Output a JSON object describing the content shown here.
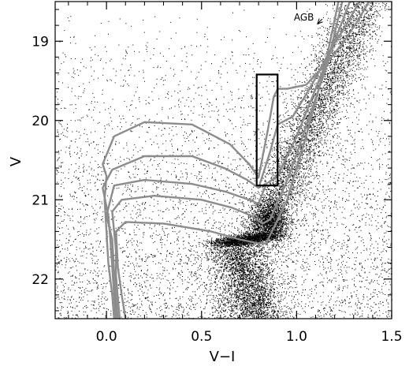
{
  "chart_data": {
    "type": "scatter",
    "title": "",
    "xlabel": "V−I",
    "ylabel": "V",
    "xlim": [
      -0.27,
      1.5
    ],
    "ylim": [
      22.5,
      18.5
    ],
    "y_inverted": true,
    "x_ticks": [
      0.0,
      0.5,
      1.0,
      1.5
    ],
    "x_tick_labels": [
      "0.0",
      "0.5",
      "1.0",
      "1.5"
    ],
    "y_ticks": [
      19,
      20,
      21,
      22
    ],
    "y_tick_labels": [
      "19",
      "20",
      "21",
      "22"
    ],
    "grid": false,
    "point_color": "#000000",
    "isochrone_color": "#8c8c8c",
    "box_color": "#000000",
    "annotations": [
      {
        "text": "AGB",
        "x": 1.06,
        "y": 18.7,
        "arrow_to": [
          1.11,
          18.78
        ]
      }
    ],
    "selection_box": {
      "x": [
        0.79,
        0.9
      ],
      "y": [
        19.42,
        20.82
      ]
    },
    "point_cloud": {
      "description_components": [
        {
          "name": "red clump",
          "center": [
            0.86,
            21.27
          ],
          "spread": [
            0.05,
            0.13
          ],
          "weight": 0.1
        },
        {
          "name": "red giant branch",
          "from": [
            0.8,
            21.55
          ],
          "to": [
            1.35,
            18.5
          ],
          "width": 0.07,
          "weight": 0.3
        },
        {
          "name": "main sequence turnoff",
          "from": [
            0.78,
            22.5
          ],
          "to": [
            0.68,
            21.55
          ],
          "width": 0.08,
          "weight": 0.18
        },
        {
          "name": "subgiant",
          "from": [
            0.6,
            21.55
          ],
          "to": [
            0.85,
            21.45
          ],
          "width": 0.05,
          "weight": 0.1
        },
        {
          "name": "field",
          "xrange": [
            -0.27,
            1.5
          ],
          "yrange": [
            18.5,
            22.5
          ],
          "weight": 0.32
        }
      ]
    },
    "series": [
      {
        "x": [
          0.04,
          0.03,
          0.01,
          0.0,
          -0.01,
          0.0,
          -0.02,
          0.04,
          0.2,
          0.45,
          0.65,
          0.75,
          0.8,
          0.85,
          0.88,
          0.9,
          0.95,
          1.05,
          1.15,
          1.25,
          1.32,
          1.38
        ],
        "y": [
          22.5,
          22.2,
          21.8,
          21.4,
          21.0,
          20.7,
          20.55,
          20.2,
          20.02,
          20.05,
          20.3,
          20.55,
          20.72,
          20.1,
          19.7,
          19.6,
          19.6,
          19.55,
          19.3,
          19.0,
          18.75,
          18.5
        ]
      },
      {
        "x": [
          0.05,
          0.04,
          0.03,
          0.02,
          0.01,
          -0.02,
          0.03,
          0.2,
          0.45,
          0.62,
          0.74,
          0.8,
          0.86,
          0.9,
          0.98,
          1.08,
          1.18,
          1.26,
          1.33
        ],
        "y": [
          22.5,
          22.2,
          21.85,
          21.5,
          21.2,
          20.85,
          20.62,
          20.45,
          20.45,
          20.6,
          20.75,
          20.85,
          20.4,
          20.05,
          19.95,
          19.55,
          19.1,
          18.8,
          18.5
        ]
      },
      {
        "x": [
          0.06,
          0.05,
          0.04,
          0.03,
          0.0,
          0.04,
          0.2,
          0.45,
          0.63,
          0.75,
          0.8,
          0.84,
          0.9,
          1.0,
          1.1,
          1.2,
          1.28
        ],
        "y": [
          22.5,
          22.25,
          21.9,
          21.5,
          21.2,
          20.82,
          20.75,
          20.8,
          20.9,
          21.0,
          21.05,
          20.8,
          20.7,
          20.2,
          19.6,
          19.0,
          18.5
        ]
      },
      {
        "x": [
          0.07,
          0.06,
          0.05,
          0.05,
          0.03,
          0.08,
          0.25,
          0.5,
          0.66,
          0.76,
          0.82,
          0.86,
          0.96,
          1.06,
          1.16,
          1.24
        ],
        "y": [
          22.5,
          22.25,
          21.95,
          21.65,
          21.15,
          21.0,
          20.95,
          21.0,
          21.1,
          21.2,
          21.3,
          21.25,
          20.7,
          20.0,
          19.3,
          18.5
        ]
      },
      {
        "x": [
          0.1,
          0.08,
          0.06,
          0.05,
          0.1,
          0.3,
          0.55,
          0.7,
          0.8,
          0.84,
          0.95,
          1.05,
          1.15,
          1.22
        ],
        "y": [
          22.5,
          22.2,
          21.85,
          21.4,
          21.28,
          21.3,
          21.4,
          21.5,
          21.55,
          21.55,
          21.0,
          20.2,
          19.3,
          18.5
        ]
      }
    ]
  }
}
